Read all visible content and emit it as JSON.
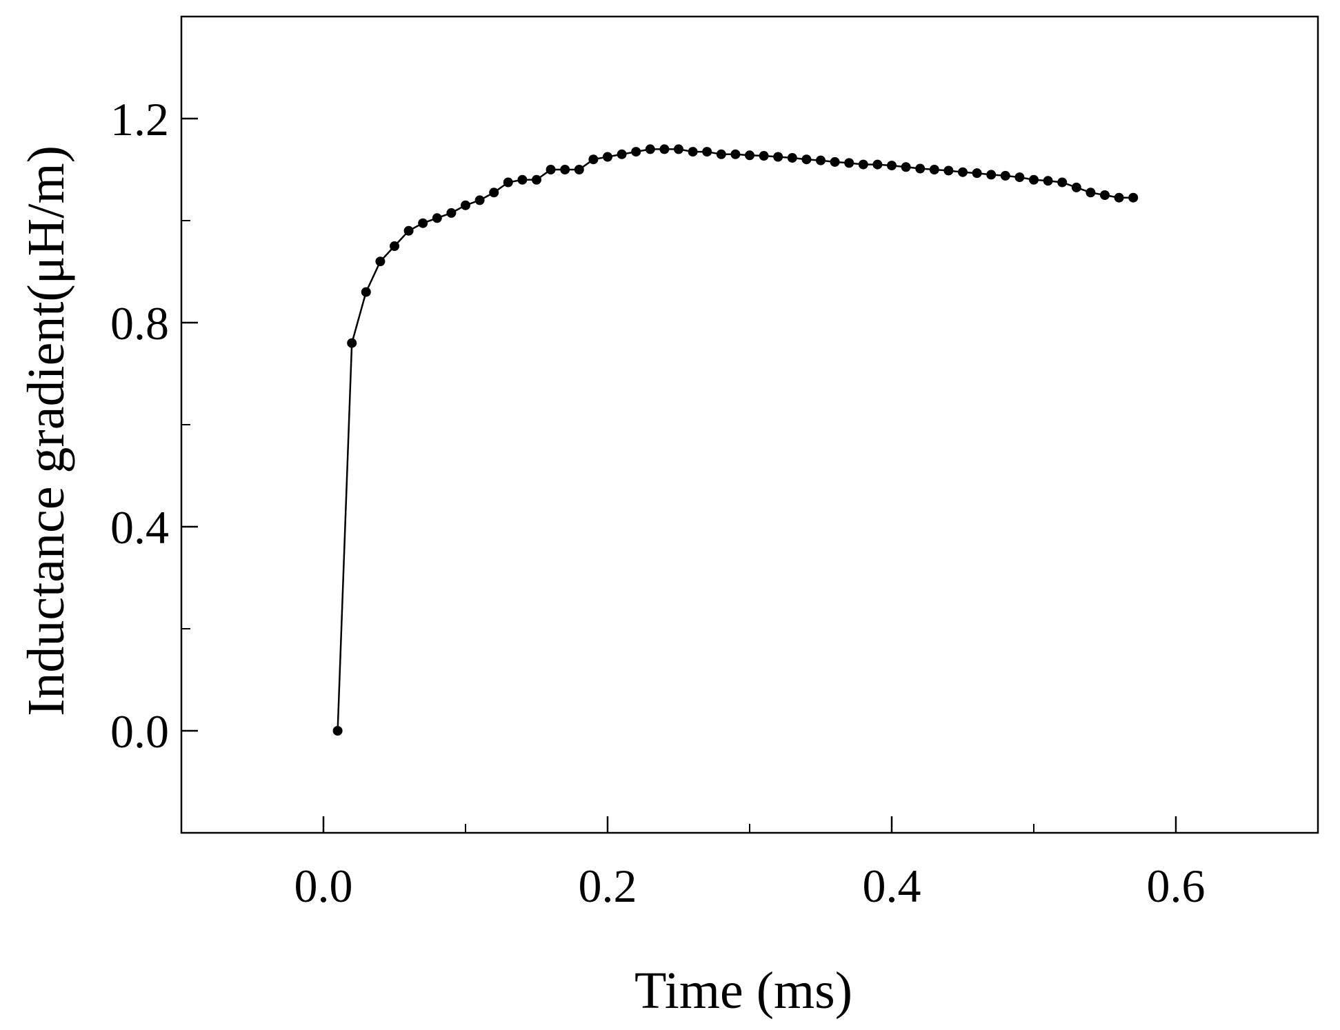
{
  "chart_data": {
    "type": "line",
    "title": "",
    "xlabel": "Time (ms)",
    "ylabel": "Inductance gradient(μH/m)",
    "xlim": [
      -0.1,
      0.7
    ],
    "ylim": [
      -0.2,
      1.4
    ],
    "x_ticks": [
      0.0,
      0.2,
      0.4,
      0.6
    ],
    "x_tick_labels": [
      "0.0",
      "0.2",
      "0.4",
      "0.6"
    ],
    "x_minor_ticks": [
      0.1,
      0.3,
      0.5
    ],
    "y_ticks": [
      0.0,
      0.4,
      0.8,
      1.2
    ],
    "y_tick_labels": [
      "0.0",
      "0.4",
      "0.8",
      "1.2"
    ],
    "y_minor_ticks": [
      0.2,
      0.6,
      1.0
    ],
    "grid": false,
    "marker": "circle",
    "color": "#000000",
    "series": [
      {
        "x": [
          0.01,
          0.02,
          0.03,
          0.04,
          0.05,
          0.06,
          0.07,
          0.08,
          0.09,
          0.1,
          0.11,
          0.12,
          0.13,
          0.14,
          0.15,
          0.16,
          0.17,
          0.18,
          0.19,
          0.2,
          0.21,
          0.22,
          0.23,
          0.24,
          0.25,
          0.26,
          0.27,
          0.28,
          0.29,
          0.3,
          0.31,
          0.32,
          0.33,
          0.34,
          0.35,
          0.36,
          0.37,
          0.38,
          0.39,
          0.4,
          0.41,
          0.42,
          0.43,
          0.44,
          0.45,
          0.46,
          0.47,
          0.48,
          0.49,
          0.5,
          0.51,
          0.52,
          0.53,
          0.54,
          0.55,
          0.56,
          0.57
        ],
        "y": [
          0.0,
          0.76,
          0.86,
          0.92,
          0.95,
          0.98,
          0.995,
          1.005,
          1.015,
          1.03,
          1.04,
          1.055,
          1.075,
          1.08,
          1.08,
          1.1,
          1.1,
          1.1,
          1.12,
          1.125,
          1.13,
          1.135,
          1.14,
          1.14,
          1.14,
          1.135,
          1.135,
          1.13,
          1.13,
          1.128,
          1.127,
          1.125,
          1.123,
          1.12,
          1.118,
          1.115,
          1.113,
          1.11,
          1.11,
          1.108,
          1.105,
          1.102,
          1.1,
          1.098,
          1.095,
          1.093,
          1.09,
          1.088,
          1.085,
          1.08,
          1.078,
          1.075,
          1.065,
          1.055,
          1.05,
          1.045,
          1.045
        ]
      }
    ]
  }
}
